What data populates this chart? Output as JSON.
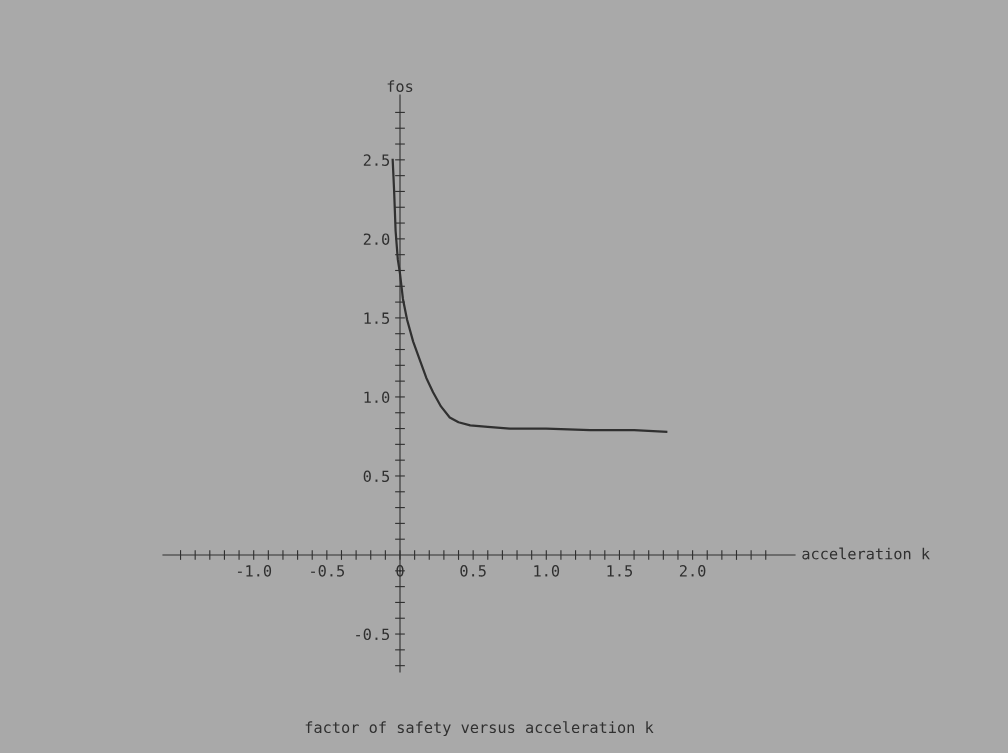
{
  "chart_data": {
    "type": "line",
    "title": "factor of safety versus acceleration k",
    "xlabel": "acceleration k",
    "ylabel": "fos",
    "x": [
      -0.05,
      -0.04,
      -0.03,
      -0.015,
      0,
      0.02,
      0.048,
      0.09,
      0.137,
      0.18,
      0.226,
      0.28,
      0.34,
      0.4,
      0.48,
      0.6,
      0.75,
      1.0,
      1.3,
      1.6,
      1.82
    ],
    "series": [
      {
        "color": "#303030",
        "values": [
          2.5,
          2.3,
          2.05,
          1.87,
          1.78,
          1.62,
          1.49,
          1.35,
          1.23,
          1.12,
          1.03,
          0.94,
          0.87,
          0.84,
          0.82,
          0.81,
          0.8,
          0.8,
          0.79,
          0.79,
          0.78
        ]
      }
    ],
    "xlim": [
      -1.62,
      2.7
    ],
    "ylim": [
      -0.74,
      2.91
    ],
    "xticks": [
      {
        "value": -1.5,
        "label": null
      },
      {
        "value": -1.4,
        "label": null
      },
      {
        "value": -1.3,
        "label": null
      },
      {
        "value": -1.2,
        "label": null
      },
      {
        "value": -1.1,
        "label": null
      },
      {
        "value": -1.0,
        "label": "-1.0"
      },
      {
        "value": -0.9,
        "label": null
      },
      {
        "value": -0.8,
        "label": null
      },
      {
        "value": -0.7,
        "label": null
      },
      {
        "value": -0.6,
        "label": null
      },
      {
        "value": -0.5,
        "label": "-0.5"
      },
      {
        "value": -0.4,
        "label": null
      },
      {
        "value": -0.3,
        "label": null
      },
      {
        "value": -0.2,
        "label": null
      },
      {
        "value": -0.1,
        "label": null
      },
      {
        "value": 0,
        "label": "0"
      },
      {
        "value": 0.1,
        "label": null
      },
      {
        "value": 0.2,
        "label": null
      },
      {
        "value": 0.3,
        "label": null
      },
      {
        "value": 0.4,
        "label": null
      },
      {
        "value": 0.5,
        "label": "0.5"
      },
      {
        "value": 0.6,
        "label": null
      },
      {
        "value": 0.7,
        "label": null
      },
      {
        "value": 0.8,
        "label": null
      },
      {
        "value": 0.9,
        "label": null
      },
      {
        "value": 1.0,
        "label": "1.0"
      },
      {
        "value": 1.1,
        "label": null
      },
      {
        "value": 1.2,
        "label": null
      },
      {
        "value": 1.3,
        "label": null
      },
      {
        "value": 1.4,
        "label": null
      },
      {
        "value": 1.5,
        "label": "1.5"
      },
      {
        "value": 1.6,
        "label": null
      },
      {
        "value": 1.7,
        "label": null
      },
      {
        "value": 1.8,
        "label": null
      },
      {
        "value": 1.9,
        "label": null
      },
      {
        "value": 2.0,
        "label": "2.0"
      },
      {
        "value": 2.1,
        "label": null
      },
      {
        "value": 2.2,
        "label": null
      },
      {
        "value": 2.3,
        "label": null
      },
      {
        "value": 2.4,
        "label": null
      },
      {
        "value": 2.5,
        "label": null
      }
    ],
    "yticks": [
      {
        "value": -0.7,
        "label": null
      },
      {
        "value": -0.6,
        "label": null
      },
      {
        "value": -0.5,
        "label": "-0.5"
      },
      {
        "value": -0.4,
        "label": null
      },
      {
        "value": -0.3,
        "label": null
      },
      {
        "value": -0.2,
        "label": null
      },
      {
        "value": -0.1,
        "label": null
      },
      {
        "value": 0.1,
        "label": null
      },
      {
        "value": 0.2,
        "label": null
      },
      {
        "value": 0.3,
        "label": null
      },
      {
        "value": 0.4,
        "label": null
      },
      {
        "value": 0.5,
        "label": "0.5"
      },
      {
        "value": 0.6,
        "label": null
      },
      {
        "value": 0.7,
        "label": null
      },
      {
        "value": 0.8,
        "label": null
      },
      {
        "value": 0.9,
        "label": null
      },
      {
        "value": 1.0,
        "label": "1.0"
      },
      {
        "value": 1.1,
        "label": null
      },
      {
        "value": 1.2,
        "label": null
      },
      {
        "value": 1.3,
        "label": null
      },
      {
        "value": 1.4,
        "label": null
      },
      {
        "value": 1.5,
        "label": "1.5"
      },
      {
        "value": 1.6,
        "label": null
      },
      {
        "value": 1.7,
        "label": null
      },
      {
        "value": 1.8,
        "label": null
      },
      {
        "value": 1.9,
        "label": null
      },
      {
        "value": 2.0,
        "label": "2.0"
      },
      {
        "value": 2.1,
        "label": null
      },
      {
        "value": 2.2,
        "label": null
      },
      {
        "value": 2.3,
        "label": null
      },
      {
        "value": 2.4,
        "label": null
      },
      {
        "value": 2.5,
        "label": "2.5"
      },
      {
        "value": 2.6,
        "label": null
      },
      {
        "value": 2.7,
        "label": null
      },
      {
        "value": 2.8,
        "label": null
      }
    ],
    "grid": false,
    "legend": false,
    "marker": "none",
    "line_style": "solid"
  }
}
